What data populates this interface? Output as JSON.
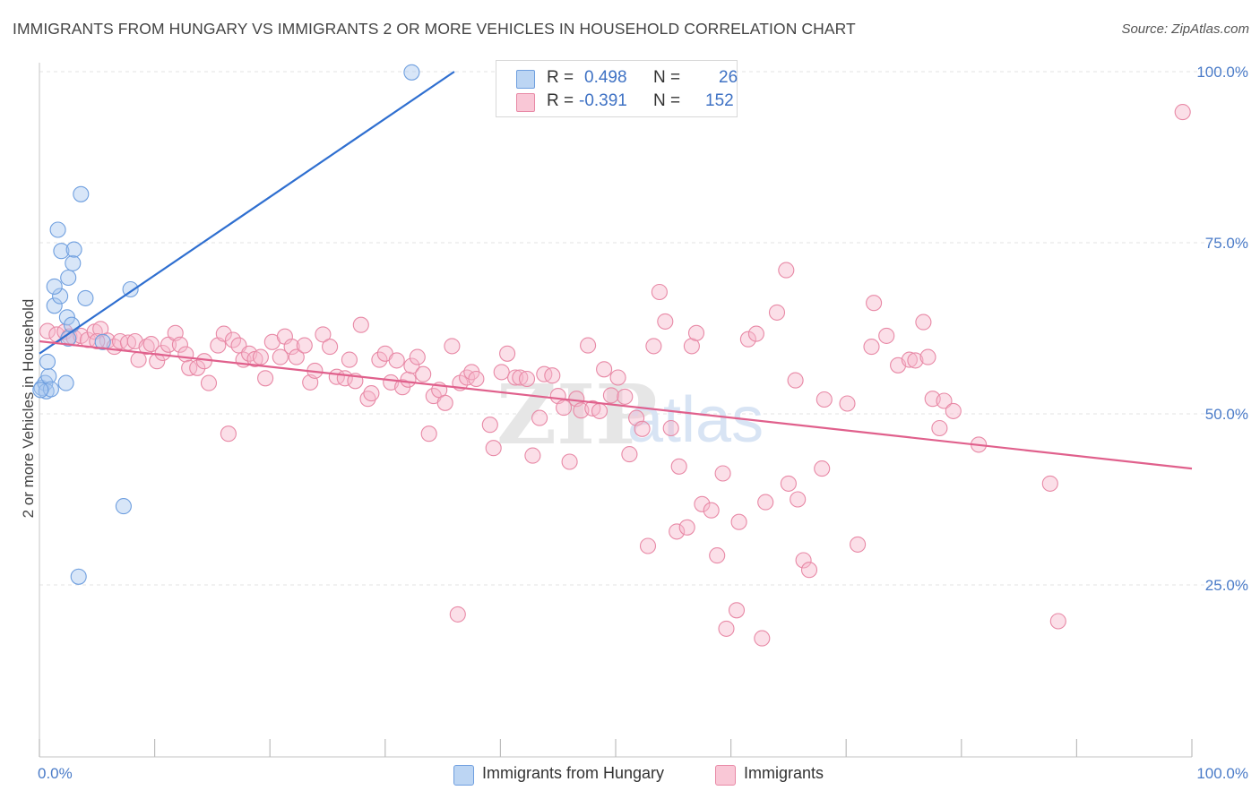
{
  "title": "IMMIGRANTS FROM HUNGARY VS IMMIGRANTS 2 OR MORE VEHICLES IN HOUSEHOLD CORRELATION CHART",
  "source": "Source: ZipAtlas.com",
  "watermark": {
    "zip": "ZIP",
    "atlas": "atlas"
  },
  "legend": {
    "rows": [
      {
        "r_label": "R =",
        "r_value": "0.498",
        "n_label": "N =",
        "n_value": "26",
        "color": "#a9c8f0",
        "border": "#6f9fdf"
      },
      {
        "r_label": "R =",
        "r_value": "-0.391",
        "n_label": "N =",
        "n_value": "152",
        "color": "#f7b8cb",
        "border": "#e889a6"
      }
    ]
  },
  "bottom_legend": [
    {
      "label": "Immigrants from Hungary",
      "color": "#a9c8f0",
      "border": "#6f9fdf"
    },
    {
      "label": "Immigrants",
      "color": "#f7b8cb",
      "border": "#e889a6"
    }
  ],
  "chart_data": {
    "type": "scatter",
    "title": "IMMIGRANTS FROM HUNGARY VS IMMIGRANTS 2 OR MORE VEHICLES IN HOUSEHOLD CORRELATION CHART",
    "xlabel": "",
    "ylabel": "2 or more Vehicles in Household",
    "xlim": [
      0,
      100
    ],
    "ylim": [
      0,
      102
    ],
    "x_tick_labels": [
      "0.0%",
      "100.0%"
    ],
    "y_ticks": [
      25,
      50,
      75,
      100
    ],
    "y_tick_labels": [
      "25.0%",
      "50.0%",
      "75.0%",
      "100.0%"
    ],
    "grid": true,
    "legend_position": "top-center",
    "series": [
      {
        "name": "Immigrants from Hungary",
        "color": "#a9c8f0",
        "stroke": "#6f9fdf",
        "trend_color": "#2f6fd0",
        "trend": {
          "x": [
            0,
            36
          ],
          "y": [
            58.8,
            100
          ]
        },
        "points": [
          [
            0.2,
            53.8
          ],
          [
            0.5,
            54.5
          ],
          [
            0.6,
            53.3
          ],
          [
            0.8,
            55.5
          ],
          [
            1.0,
            53.6
          ],
          [
            0.7,
            57.6
          ],
          [
            2.3,
            54.5
          ],
          [
            1.3,
            65.8
          ],
          [
            1.8,
            67.2
          ],
          [
            1.3,
            68.6
          ],
          [
            2.5,
            69.9
          ],
          [
            2.9,
            72.0
          ],
          [
            1.9,
            73.8
          ],
          [
            3.0,
            74.0
          ],
          [
            1.6,
            76.9
          ],
          [
            3.6,
            82.1
          ],
          [
            4.0,
            66.9
          ],
          [
            2.4,
            64.1
          ],
          [
            2.8,
            63.0
          ],
          [
            2.5,
            61.0
          ],
          [
            5.5,
            60.5
          ],
          [
            7.9,
            68.2
          ],
          [
            7.3,
            36.5
          ],
          [
            3.4,
            26.2
          ],
          [
            32.3,
            99.9
          ],
          [
            0.1,
            53.5
          ]
        ]
      },
      {
        "name": "Immigrants",
        "color": "#f7b8cb",
        "stroke": "#e889a6",
        "trend_color": "#e0608c",
        "trend": {
          "x": [
            0,
            100
          ],
          "y": [
            60.6,
            42.0
          ]
        },
        "points": [
          [
            0.7,
            62.1
          ],
          [
            1.5,
            61.6
          ],
          [
            2.2,
            62.0
          ],
          [
            2.6,
            61.3
          ],
          [
            3.0,
            61.1
          ],
          [
            3.6,
            61.4
          ],
          [
            4.2,
            60.8
          ],
          [
            4.8,
            62.0
          ],
          [
            5.3,
            62.4
          ],
          [
            5.9,
            60.7
          ],
          [
            6.5,
            59.8
          ],
          [
            7.0,
            60.6
          ],
          [
            7.7,
            60.4
          ],
          [
            8.3,
            60.6
          ],
          [
            8.6,
            57.9
          ],
          [
            9.3,
            59.8
          ],
          [
            9.7,
            60.2
          ],
          [
            10.2,
            57.7
          ],
          [
            10.7,
            58.9
          ],
          [
            11.2,
            60.1
          ],
          [
            11.8,
            61.8
          ],
          [
            12.2,
            60.1
          ],
          [
            12.7,
            58.7
          ],
          [
            13.0,
            56.7
          ],
          [
            13.7,
            56.7
          ],
          [
            14.3,
            57.7
          ],
          [
            14.7,
            54.5
          ],
          [
            15.5,
            60.0
          ],
          [
            16.0,
            61.7
          ],
          [
            16.8,
            60.8
          ],
          [
            17.3,
            60.0
          ],
          [
            17.7,
            57.9
          ],
          [
            18.2,
            58.8
          ],
          [
            18.7,
            58.0
          ],
          [
            19.2,
            58.3
          ],
          [
            19.6,
            55.2
          ],
          [
            20.2,
            60.5
          ],
          [
            20.9,
            58.3
          ],
          [
            21.3,
            61.3
          ],
          [
            21.9,
            59.8
          ],
          [
            22.3,
            58.3
          ],
          [
            23.0,
            60.0
          ],
          [
            23.5,
            54.6
          ],
          [
            23.9,
            56.3
          ],
          [
            24.6,
            61.6
          ],
          [
            25.2,
            59.8
          ],
          [
            25.8,
            55.4
          ],
          [
            26.5,
            55.2
          ],
          [
            26.9,
            57.9
          ],
          [
            27.4,
            54.8
          ],
          [
            27.9,
            63.0
          ],
          [
            28.5,
            52.2
          ],
          [
            28.8,
            53.0
          ],
          [
            29.5,
            57.9
          ],
          [
            30.0,
            58.8
          ],
          [
            30.5,
            54.6
          ],
          [
            31.0,
            57.8
          ],
          [
            31.5,
            53.9
          ],
          [
            32.0,
            55.0
          ],
          [
            32.3,
            57.0
          ],
          [
            32.8,
            58.3
          ],
          [
            33.3,
            55.8
          ],
          [
            33.8,
            47.1
          ],
          [
            34.2,
            52.6
          ],
          [
            34.7,
            53.5
          ],
          [
            35.2,
            51.6
          ],
          [
            35.8,
            59.9
          ],
          [
            36.5,
            54.5
          ],
          [
            37.1,
            55.3
          ],
          [
            37.5,
            56.1
          ],
          [
            37.9,
            55.1
          ],
          [
            39.1,
            48.4
          ],
          [
            39.4,
            45.0
          ],
          [
            40.1,
            56.1
          ],
          [
            40.6,
            58.8
          ],
          [
            41.3,
            55.3
          ],
          [
            41.7,
            55.3
          ],
          [
            42.3,
            55.1
          ],
          [
            42.8,
            43.9
          ],
          [
            43.4,
            49.4
          ],
          [
            43.8,
            55.8
          ],
          [
            44.5,
            55.6
          ],
          [
            45.0,
            52.6
          ],
          [
            45.5,
            50.9
          ],
          [
            46.0,
            43.0
          ],
          [
            46.6,
            52.2
          ],
          [
            47.0,
            50.5
          ],
          [
            47.6,
            60.0
          ],
          [
            48.0,
            50.8
          ],
          [
            48.6,
            50.4
          ],
          [
            49.0,
            56.5
          ],
          [
            49.6,
            52.7
          ],
          [
            50.2,
            55.3
          ],
          [
            50.8,
            52.5
          ],
          [
            51.2,
            44.1
          ],
          [
            51.8,
            49.4
          ],
          [
            52.3,
            47.8
          ],
          [
            52.8,
            30.7
          ],
          [
            53.3,
            59.9
          ],
          [
            53.8,
            67.8
          ],
          [
            54.3,
            63.5
          ],
          [
            54.8,
            47.9
          ],
          [
            55.3,
            32.8
          ],
          [
            55.5,
            42.3
          ],
          [
            56.2,
            33.4
          ],
          [
            56.6,
            59.9
          ],
          [
            57.0,
            61.8
          ],
          [
            57.5,
            36.8
          ],
          [
            58.3,
            35.9
          ],
          [
            58.8,
            29.3
          ],
          [
            59.3,
            41.3
          ],
          [
            59.6,
            18.6
          ],
          [
            60.5,
            21.3
          ],
          [
            60.7,
            34.2
          ],
          [
            61.5,
            60.9
          ],
          [
            62.2,
            61.7
          ],
          [
            62.7,
            17.2
          ],
          [
            63.0,
            37.1
          ],
          [
            64.0,
            64.8
          ],
          [
            64.8,
            71.0
          ],
          [
            65.0,
            39.8
          ],
          [
            65.6,
            54.9
          ],
          [
            65.8,
            37.5
          ],
          [
            66.3,
            28.6
          ],
          [
            66.8,
            27.2
          ],
          [
            67.9,
            42.0
          ],
          [
            68.1,
            52.1
          ],
          [
            70.1,
            51.5
          ],
          [
            71.0,
            30.9
          ],
          [
            72.2,
            59.8
          ],
          [
            72.4,
            66.2
          ],
          [
            73.5,
            61.4
          ],
          [
            74.5,
            57.1
          ],
          [
            75.5,
            57.9
          ],
          [
            76.0,
            57.8
          ],
          [
            76.7,
            63.4
          ],
          [
            77.1,
            58.3
          ],
          [
            77.5,
            52.2
          ],
          [
            78.1,
            47.9
          ],
          [
            78.5,
            51.9
          ],
          [
            79.3,
            50.4
          ],
          [
            81.5,
            45.5
          ],
          [
            87.7,
            39.8
          ],
          [
            88.4,
            19.7
          ],
          [
            99.2,
            94.1
          ],
          [
            36.3,
            20.7
          ],
          [
            5.0,
            60.6
          ],
          [
            16.4,
            47.1
          ]
        ]
      }
    ]
  }
}
